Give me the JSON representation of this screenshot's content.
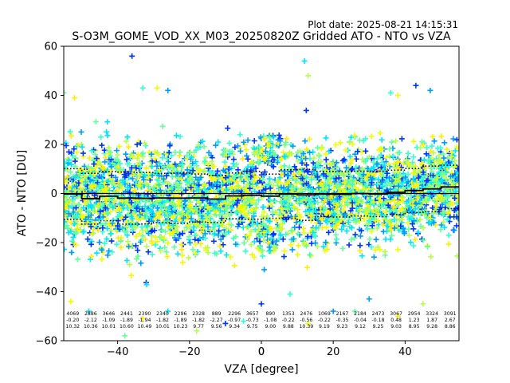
{
  "plot_date": "Plot date: 2025-08-21 14:15:31",
  "chart_data": {
    "type": "scatter",
    "title": "S-O3M_GOME_VOD_XX_M03_20250820Z Gridded ATO - NTO vs VZA",
    "xlabel": "VZA [degree]",
    "ylabel": "ATO - NTO [DU]",
    "xlim": [
      -55,
      55
    ],
    "ylim": [
      -60,
      60
    ],
    "xticks": [
      -40,
      -20,
      0,
      20,
      40
    ],
    "yticks": [
      -60,
      -40,
      -20,
      0,
      20,
      40,
      60
    ],
    "grid": false,
    "legend": "none",
    "marker": "+",
    "marker_colors": [
      "#0033ff",
      "#0099ff",
      "#00e5ff",
      "#33ffd0",
      "#66ff99",
      "#b3ff4d",
      "#eeff00",
      "#ffee00"
    ],
    "bins_x": [
      -52.5,
      -47.5,
      -42.5,
      -37.5,
      -32.5,
      -27.5,
      -22.5,
      -17.5,
      -12.5,
      -7.5,
      -2.5,
      2.5,
      7.5,
      12.5,
      17.5,
      22.5,
      27.5,
      32.5,
      37.5,
      42.5,
      47.5,
      52.5
    ],
    "bin_stats": [
      {
        "x": -52.5,
        "count": "4069",
        "mean": "-0.20",
        "std": "10.32"
      },
      {
        "x": -47.5,
        "count": "2886",
        "mean": "-2.12",
        "std": "10.36"
      },
      {
        "x": -42.5,
        "count": "3646",
        "mean": "-1.09",
        "std": "10.01"
      },
      {
        "x": -37.5,
        "count": "2441",
        "mean": "-1.89",
        "std": "10.60"
      },
      {
        "x": -32.5,
        "count": "2390",
        "mean": "-1.94",
        "std": "10.49"
      },
      {
        "x": -27.5,
        "count": "2340",
        "mean": "-1.82",
        "std": "10.01"
      },
      {
        "x": -22.5,
        "count": "2296",
        "mean": "-1.89",
        "std": "10.23"
      },
      {
        "x": -17.5,
        "count": "2328",
        "mean": "-1.82",
        "std": "9.77"
      },
      {
        "x": -12.5,
        "count": "889",
        "mean": "-2.27",
        "std": "9.56"
      },
      {
        "x": -7.5,
        "count": "2296",
        "mean": "-0.97",
        "std": "9.34"
      },
      {
        "x": -2.5,
        "count": "3657",
        "mean": "-0.73",
        "std": "9.75"
      },
      {
        "x": 2.5,
        "count": "890",
        "mean": "-1.08",
        "std": "9.00"
      },
      {
        "x": 7.5,
        "count": "1353",
        "mean": "-0.22",
        "std": "9.88"
      },
      {
        "x": 12.5,
        "count": "2476",
        "mean": "-0.56",
        "std": "10.39"
      },
      {
        "x": 17.5,
        "count": "1069",
        "mean": "-0.22",
        "std": "9.19"
      },
      {
        "x": 22.5,
        "count": "2167",
        "mean": "-0.35",
        "std": "9.23"
      },
      {
        "x": 27.5,
        "count": "2184",
        "mean": "-0.04",
        "std": "9.12"
      },
      {
        "x": 32.5,
        "count": "2473",
        "mean": "-0.18",
        "std": "9.25"
      },
      {
        "x": 37.5,
        "count": "3067",
        "mean": "0.48",
        "std": "9.03"
      },
      {
        "x": 42.5,
        "count": "2954",
        "mean": "1.23",
        "std": "8.95"
      },
      {
        "x": 47.5,
        "count": "3324",
        "mean": "1.87",
        "std": "9.28"
      },
      {
        "x": 52.5,
        "count": "3091",
        "mean": "2.67",
        "std": "8.86"
      }
    ],
    "visible_outliers": [
      {
        "x": -36,
        "y": 56
      },
      {
        "x": -33,
        "y": 43
      },
      {
        "x": -29,
        "y": 43
      },
      {
        "x": -26,
        "y": 42
      },
      {
        "x": -55,
        "y": 41
      },
      {
        "x": -52,
        "y": 39
      },
      {
        "x": 12,
        "y": 54
      },
      {
        "x": 13,
        "y": 48
      },
      {
        "x": 43,
        "y": 44
      },
      {
        "x": 36,
        "y": 41
      },
      {
        "x": 38,
        "y": 40
      },
      {
        "x": 47,
        "y": 42
      },
      {
        "x": -38,
        "y": -58
      },
      {
        "x": -33,
        "y": -51
      },
      {
        "x": -26,
        "y": -48
      },
      {
        "x": -18,
        "y": -56
      },
      {
        "x": -10,
        "y": -53
      },
      {
        "x": -5,
        "y": -52
      },
      {
        "x": 13,
        "y": -53
      },
      {
        "x": 20,
        "y": -48
      },
      {
        "x": 26,
        "y": -48
      },
      {
        "x": 38,
        "y": -50
      },
      {
        "x": -48,
        "y": -48
      },
      {
        "x": 45,
        "y": -45
      },
      {
        "x": 0,
        "y": -45
      },
      {
        "x": 8,
        "y": -41
      },
      {
        "x": -53,
        "y": -44
      },
      {
        "x": 30,
        "y": -43
      }
    ]
  }
}
